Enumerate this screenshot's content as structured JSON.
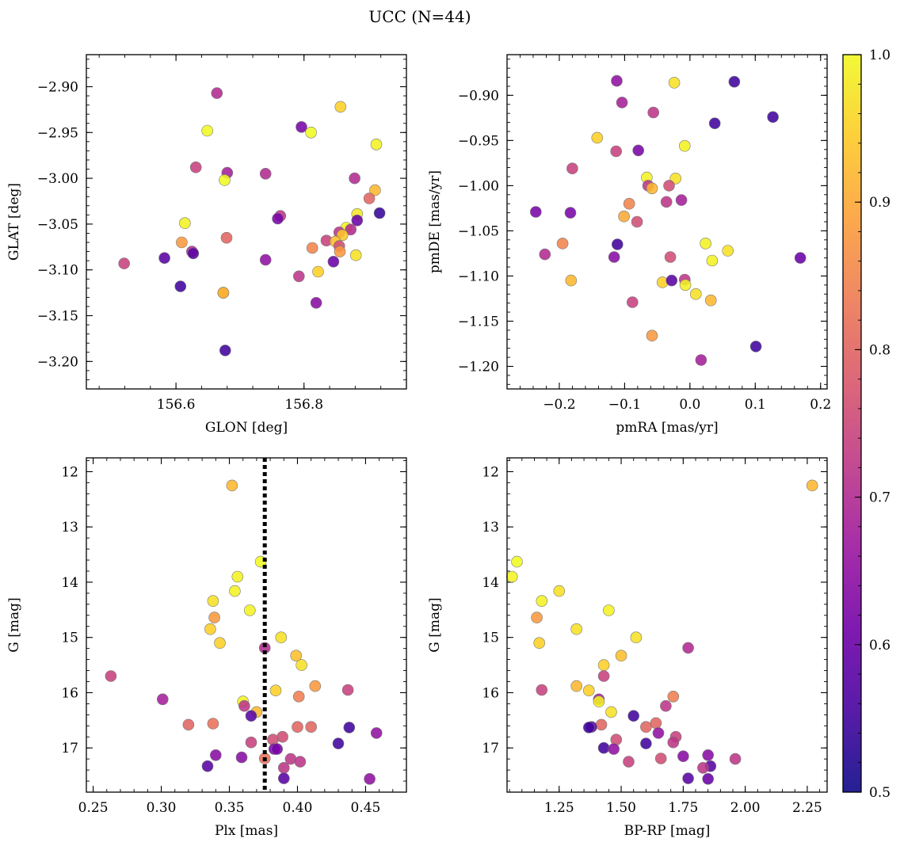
{
  "chart_data": {
    "title": "UCC (N=44)",
    "colorbar": {
      "colormap": "plasma",
      "range": [
        0.5,
        1.0
      ],
      "ticks": [
        0.5,
        0.6,
        0.7,
        0.8,
        0.9,
        1.0
      ],
      "tick_labels": [
        "0.5",
        "0.6",
        "0.7",
        "0.8",
        "0.9",
        "1.0"
      ],
      "colors": [
        "#0d0887",
        "#46039f",
        "#7201a8",
        "#9c179e",
        "#bd3786",
        "#d8576b",
        "#ed7953",
        "#fb9f3a",
        "#fdca26",
        "#f0f921"
      ]
    },
    "panels": [
      {
        "id": "glon-glat",
        "type": "scatter",
        "xlabel": "GLON [deg]",
        "ylabel": "GLAT [deg]",
        "xlim": [
          156.46,
          156.96
        ],
        "ylim": [
          -3.23,
          -2.865
        ],
        "y_inverted": false,
        "xticks": [
          156.6,
          156.8
        ],
        "xtick_labels": [
          "156.6",
          "156.8"
        ],
        "yticks": [
          -2.9,
          -2.95,
          -3.0,
          -3.05,
          -3.1,
          -3.15,
          -3.2
        ],
        "ytick_labels": [
          "−2.90",
          "−2.95",
          "−3.00",
          "−3.05",
          "−3.10",
          "−3.15",
          "−3.20"
        ],
        "points": [
          [
            156.664,
            -2.907,
            0.7
          ],
          [
            156.857,
            -2.922,
            0.95
          ],
          [
            156.649,
            -2.948,
            1.0
          ],
          [
            156.796,
            -2.944,
            0.62
          ],
          [
            156.811,
            -2.95,
            1.0
          ],
          [
            156.913,
            -2.963,
            0.99
          ],
          [
            156.631,
            -2.988,
            0.74
          ],
          [
            156.68,
            -2.994,
            0.68
          ],
          [
            156.74,
            -2.995,
            0.7
          ],
          [
            156.676,
            -3.002,
            1.0
          ],
          [
            156.879,
            -3.0,
            0.7
          ],
          [
            156.911,
            -3.013,
            0.92
          ],
          [
            156.902,
            -3.022,
            0.8
          ],
          [
            156.918,
            -3.038,
            0.54
          ],
          [
            156.883,
            -3.039,
            0.98
          ],
          [
            156.763,
            -3.041,
            0.72
          ],
          [
            156.759,
            -3.044,
            0.62
          ],
          [
            156.614,
            -3.049,
            0.99
          ],
          [
            156.883,
            -3.046,
            0.6
          ],
          [
            156.866,
            -3.054,
            0.99
          ],
          [
            156.873,
            -3.056,
            0.7
          ],
          [
            156.855,
            -3.059,
            0.72
          ],
          [
            156.86,
            -3.062,
            0.94
          ],
          [
            156.679,
            -3.065,
            0.8
          ],
          [
            156.835,
            -3.068,
            0.74
          ],
          [
            156.849,
            -3.069,
            0.93
          ],
          [
            156.609,
            -3.07,
            0.88
          ],
          [
            156.855,
            -3.074,
            0.76
          ],
          [
            156.813,
            -3.076,
            0.85
          ],
          [
            156.856,
            -3.08,
            0.88
          ],
          [
            156.625,
            -3.08,
            0.7
          ],
          [
            156.627,
            -3.082,
            0.58
          ],
          [
            156.881,
            -3.084,
            0.97
          ],
          [
            156.582,
            -3.087,
            0.58
          ],
          [
            156.74,
            -3.089,
            0.65
          ],
          [
            156.846,
            -3.091,
            0.6
          ],
          [
            156.519,
            -3.093,
            0.74
          ],
          [
            156.822,
            -3.102,
            0.95
          ],
          [
            156.792,
            -3.107,
            0.72
          ],
          [
            156.607,
            -3.118,
            0.55
          ],
          [
            156.674,
            -3.125,
            0.97
          ],
          [
            156.674,
            -3.125,
            0.9
          ],
          [
            156.819,
            -3.136,
            0.64
          ],
          [
            156.677,
            -3.188,
            0.55
          ]
        ]
      },
      {
        "id": "pmra-pmde",
        "type": "scatter",
        "xlabel": "pmRA [mas/yr]",
        "ylabel": "pmDE [mas/yr]",
        "xlim": [
          -0.28,
          0.21
        ],
        "ylim": [
          -1.225,
          -0.855
        ],
        "y_inverted": false,
        "xticks": [
          -0.2,
          -0.1,
          0.0,
          0.1,
          0.2
        ],
        "xtick_labels": [
          "−0.2",
          "−0.1",
          "0.0",
          "0.1",
          "0.2"
        ],
        "yticks": [
          -0.9,
          -0.95,
          -1.0,
          -1.05,
          -1.1,
          -1.15,
          -1.2
        ],
        "ytick_labels": [
          "−0.90",
          "−0.95",
          "−1.00",
          "−1.05",
          "−1.10",
          "−1.15",
          "−1.20"
        ],
        "points": [
          [
            -0.112,
            -0.884,
            0.65
          ],
          [
            -0.024,
            -0.886,
            0.97
          ],
          [
            0.068,
            -0.885,
            0.55
          ],
          [
            -0.104,
            -0.908,
            0.68
          ],
          [
            -0.056,
            -0.919,
            0.72
          ],
          [
            0.038,
            -0.931,
            0.55
          ],
          [
            0.127,
            -0.924,
            0.55
          ],
          [
            -0.142,
            -0.947,
            0.95
          ],
          [
            -0.113,
            -0.962,
            0.74
          ],
          [
            -0.079,
            -0.961,
            0.62
          ],
          [
            -0.008,
            -0.956,
            0.99
          ],
          [
            -0.18,
            -0.981,
            0.74
          ],
          [
            -0.066,
            -0.991,
            0.99
          ],
          [
            -0.022,
            -0.992,
            0.97
          ],
          [
            -0.064,
            -1.0,
            0.72
          ],
          [
            -0.058,
            -1.003,
            0.92
          ],
          [
            -0.032,
            -1.0,
            0.76
          ],
          [
            -0.093,
            -1.02,
            0.85
          ],
          [
            -0.036,
            -1.018,
            0.72
          ],
          [
            -0.013,
            -1.016,
            0.68
          ],
          [
            -0.236,
            -1.029,
            0.62
          ],
          [
            -0.183,
            -1.03,
            0.62
          ],
          [
            -0.101,
            -1.034,
            0.9
          ],
          [
            -0.081,
            -1.04,
            0.76
          ],
          [
            -0.195,
            -1.064,
            0.85
          ],
          [
            -0.111,
            -1.065,
            0.55
          ],
          [
            0.024,
            -1.064,
            0.99
          ],
          [
            -0.222,
            -1.076,
            0.7
          ],
          [
            0.058,
            -1.072,
            0.97
          ],
          [
            -0.116,
            -1.079,
            0.64
          ],
          [
            -0.03,
            -1.079,
            0.76
          ],
          [
            0.034,
            -1.083,
            0.99
          ],
          [
            0.169,
            -1.08,
            0.6
          ],
          [
            -0.182,
            -1.105,
            0.92
          ],
          [
            -0.042,
            -1.107,
            0.95
          ],
          [
            -0.028,
            -1.105,
            0.58
          ],
          [
            -0.008,
            -1.104,
            0.72
          ],
          [
            -0.007,
            -1.11,
            0.99
          ],
          [
            0.009,
            -1.12,
            0.97
          ],
          [
            0.032,
            -1.127,
            0.92
          ],
          [
            -0.088,
            -1.129,
            0.74
          ],
          [
            -0.058,
            -1.166,
            0.88
          ],
          [
            0.101,
            -1.178,
            0.55
          ],
          [
            0.017,
            -1.193,
            0.68
          ]
        ]
      },
      {
        "id": "plx-g",
        "type": "scatter",
        "xlabel": "Plx [mas]",
        "ylabel": "G [mag]",
        "xlim": [
          0.245,
          0.48
        ],
        "ylim": [
          11.75,
          17.8
        ],
        "y_inverted": true,
        "xticks": [
          0.25,
          0.3,
          0.35,
          0.4,
          0.45
        ],
        "xtick_labels": [
          "0.25",
          "0.30",
          "0.35",
          "0.40",
          "0.45"
        ],
        "yticks": [
          12,
          13,
          14,
          15,
          16,
          17
        ],
        "ytick_labels": [
          "12",
          "13",
          "14",
          "15",
          "16",
          "17"
        ],
        "vline": {
          "x": 0.376,
          "style": "dotted"
        },
        "points": [
          [
            0.352,
            12.25,
            0.92
          ],
          [
            0.373,
            13.63,
            1.0
          ],
          [
            0.356,
            13.9,
            0.99
          ],
          [
            0.354,
            14.16,
            0.99
          ],
          [
            0.338,
            14.34,
            0.97
          ],
          [
            0.365,
            14.51,
            0.99
          ],
          [
            0.339,
            14.64,
            0.88
          ],
          [
            0.336,
            14.85,
            0.95
          ],
          [
            0.388,
            15.0,
            0.97
          ],
          [
            0.343,
            15.1,
            0.95
          ],
          [
            0.376,
            15.19,
            0.7
          ],
          [
            0.399,
            15.33,
            0.93
          ],
          [
            0.403,
            15.5,
            0.97
          ],
          [
            0.263,
            15.7,
            0.74
          ],
          [
            0.413,
            15.88,
            0.88
          ],
          [
            0.437,
            15.95,
            0.74
          ],
          [
            0.384,
            15.96,
            0.95
          ],
          [
            0.401,
            16.07,
            0.84
          ],
          [
            0.301,
            16.12,
            0.68
          ],
          [
            0.36,
            16.16,
            0.99
          ],
          [
            0.361,
            16.24,
            0.72
          ],
          [
            0.37,
            16.35,
            0.92
          ],
          [
            0.366,
            16.42,
            0.58
          ],
          [
            0.32,
            16.58,
            0.8
          ],
          [
            0.338,
            16.56,
            0.82
          ],
          [
            0.4,
            16.62,
            0.8
          ],
          [
            0.41,
            16.62,
            0.8
          ],
          [
            0.438,
            16.63,
            0.55
          ],
          [
            0.458,
            16.73,
            0.65
          ],
          [
            0.389,
            16.8,
            0.76
          ],
          [
            0.382,
            16.85,
            0.76
          ],
          [
            0.366,
            16.9,
            0.74
          ],
          [
            0.43,
            16.92,
            0.55
          ],
          [
            0.383,
            17.02,
            0.62
          ],
          [
            0.385,
            17.02,
            0.62
          ],
          [
            0.34,
            17.13,
            0.64
          ],
          [
            0.359,
            17.17,
            0.64
          ],
          [
            0.376,
            17.19,
            0.82
          ],
          [
            0.395,
            17.2,
            0.72
          ],
          [
            0.402,
            17.25,
            0.72
          ],
          [
            0.334,
            17.33,
            0.58
          ],
          [
            0.39,
            17.36,
            0.72
          ],
          [
            0.39,
            17.55,
            0.58
          ],
          [
            0.453,
            17.56,
            0.65
          ]
        ]
      },
      {
        "id": "bprp-g",
        "type": "scatter",
        "xlabel": "BP-RP [mag]",
        "ylabel": "G [mag]",
        "xlim": [
          1.04,
          2.33
        ],
        "ylim": [
          11.75,
          17.8
        ],
        "y_inverted": true,
        "xticks": [
          1.25,
          1.5,
          1.75,
          2.0,
          2.25
        ],
        "xtick_labels": [
          "1.25",
          "1.50",
          "1.75",
          "2.00",
          "2.25"
        ],
        "yticks": [
          12,
          13,
          14,
          15,
          16,
          17
        ],
        "ytick_labels": [
          "12",
          "13",
          "14",
          "15",
          "16",
          "17"
        ],
        "points": [
          [
            2.27,
            12.25,
            0.92
          ],
          [
            1.08,
            13.63,
            1.0
          ],
          [
            1.06,
            13.9,
            0.99
          ],
          [
            1.25,
            14.16,
            0.97
          ],
          [
            1.18,
            14.34,
            0.99
          ],
          [
            1.45,
            14.51,
            0.99
          ],
          [
            1.16,
            14.64,
            0.88
          ],
          [
            1.32,
            14.85,
            0.97
          ],
          [
            1.56,
            15.0,
            0.97
          ],
          [
            1.17,
            15.1,
            0.95
          ],
          [
            1.77,
            15.19,
            0.7
          ],
          [
            1.5,
            15.33,
            0.93
          ],
          [
            1.43,
            15.5,
            0.95
          ],
          [
            1.43,
            15.7,
            0.74
          ],
          [
            1.32,
            15.88,
            0.92
          ],
          [
            1.18,
            15.95,
            0.74
          ],
          [
            1.37,
            15.96,
            0.95
          ],
          [
            1.71,
            16.07,
            0.84
          ],
          [
            1.41,
            16.12,
            0.68
          ],
          [
            1.41,
            16.16,
            0.99
          ],
          [
            1.68,
            16.24,
            0.72
          ],
          [
            1.46,
            16.35,
            0.97
          ],
          [
            1.55,
            16.42,
            0.55
          ],
          [
            1.64,
            16.55,
            0.8
          ],
          [
            1.42,
            16.58,
            0.8
          ],
          [
            1.6,
            16.62,
            0.8
          ],
          [
            1.38,
            16.62,
            0.58
          ],
          [
            1.37,
            16.63,
            0.55
          ],
          [
            1.65,
            16.73,
            0.65
          ],
          [
            1.72,
            16.8,
            0.74
          ],
          [
            1.48,
            16.85,
            0.76
          ],
          [
            1.71,
            16.9,
            0.72
          ],
          [
            1.6,
            16.92,
            0.55
          ],
          [
            1.43,
            17.0,
            0.55
          ],
          [
            1.47,
            17.02,
            0.65
          ],
          [
            1.85,
            17.13,
            0.64
          ],
          [
            1.75,
            17.15,
            0.64
          ],
          [
            1.66,
            17.19,
            0.76
          ],
          [
            1.96,
            17.2,
            0.72
          ],
          [
            1.53,
            17.25,
            0.74
          ],
          [
            1.86,
            17.33,
            0.58
          ],
          [
            1.83,
            17.36,
            0.72
          ],
          [
            1.77,
            17.55,
            0.58
          ],
          [
            1.85,
            17.56,
            0.6
          ]
        ]
      }
    ]
  }
}
